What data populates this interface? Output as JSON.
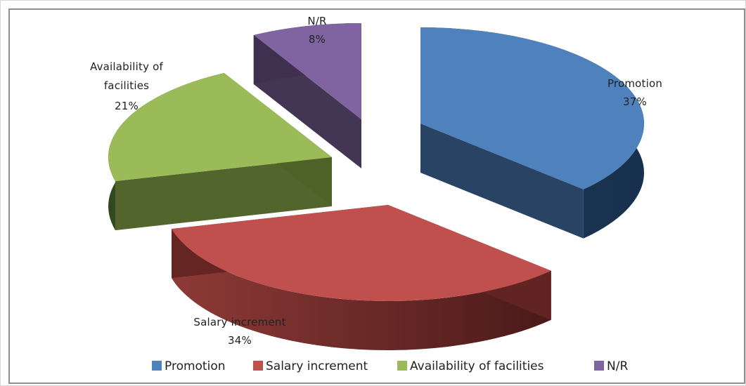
{
  "chart_data": {
    "type": "pie",
    "title": "",
    "legend": {
      "placement": "bottom"
    },
    "series": [
      {
        "values": [
          37,
          34,
          21,
          8
        ]
      }
    ],
    "categories": [
      "Promotion",
      "Salary increment",
      "Availability of facilities",
      "N/R"
    ],
    "slices": [
      {
        "label": "Promotion",
        "value": 37,
        "percent_label": "37%",
        "color": "#4f81bd",
        "dark_color": "#243f60"
      },
      {
        "label": "Salary increment",
        "value": 34,
        "percent_label": "34%",
        "color": "#c0504d",
        "dark_color": "#632523"
      },
      {
        "label": "Availability of facilities",
        "value": 21,
        "percent_label": "21%",
        "color": "#9bbb59",
        "dark_color": "#4f6228"
      },
      {
        "label": "N/R",
        "value": 8,
        "percent_label": "8%",
        "color": "#8064a2",
        "dark_color": "#3f3151"
      }
    ],
    "style": "3d-exploded-pie"
  }
}
